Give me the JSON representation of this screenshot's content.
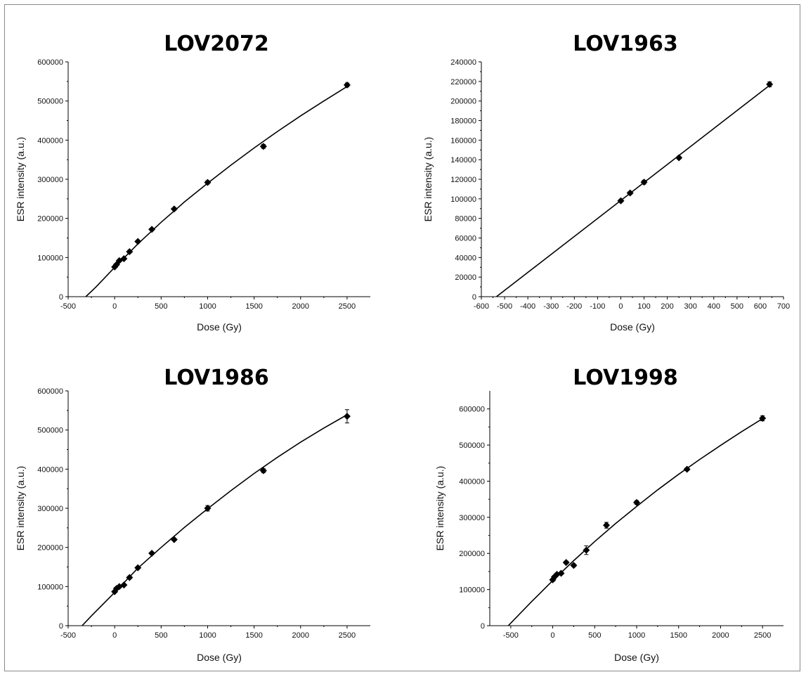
{
  "chart_data": [
    {
      "type": "scatter",
      "title": "LOV2072",
      "xlabel": "Dose (Gy)",
      "ylabel": "ESR intensity (a.u.)",
      "xlim": [
        -500,
        2750
      ],
      "ylim": [
        0,
        600000
      ],
      "xticks": [
        -500,
        0,
        500,
        1000,
        1500,
        2000,
        2500
      ],
      "yticks": [
        0,
        100000,
        200000,
        300000,
        400000,
        500000,
        600000
      ],
      "points": [
        {
          "x": 0,
          "y": 76000,
          "err": 3000
        },
        {
          "x": 20,
          "y": 82000,
          "err": 3000
        },
        {
          "x": 50,
          "y": 92000,
          "err": 3000
        },
        {
          "x": 100,
          "y": 97000,
          "err": 3000
        },
        {
          "x": 160,
          "y": 115000,
          "err": 3000
        },
        {
          "x": 250,
          "y": 141000,
          "err": 3000
        },
        {
          "x": 400,
          "y": 172000,
          "err": 3000
        },
        {
          "x": 640,
          "y": 224000,
          "err": 3000
        },
        {
          "x": 1000,
          "y": 292000,
          "err": 4000
        },
        {
          "x": 1600,
          "y": 384000,
          "err": 5000
        },
        {
          "x": 2500,
          "y": 541000,
          "err": 5000
        }
      ],
      "fit": {
        "x": [
          -310,
          -200,
          0,
          250,
          500,
          750,
          1000,
          1250,
          1500,
          1750,
          2000,
          2250,
          2500
        ],
        "y": [
          0,
          25000,
          75000,
          135000,
          190000,
          242000,
          290000,
          336000,
          380000,
          422000,
          462000,
          500000,
          537000
        ]
      }
    },
    {
      "type": "scatter",
      "title": "LOV1963",
      "xlabel": "Dose (Gy)",
      "ylabel": "ESR intensity (a.u.)",
      "xlim": [
        -600,
        700
      ],
      "ylim": [
        0,
        240000
      ],
      "xticks": [
        -600,
        -500,
        -400,
        -300,
        -200,
        -100,
        0,
        100,
        200,
        300,
        400,
        500,
        600,
        700
      ],
      "yticks": [
        0,
        20000,
        40000,
        60000,
        80000,
        100000,
        120000,
        140000,
        160000,
        180000,
        200000,
        220000,
        240000
      ],
      "points": [
        {
          "x": 0,
          "y": 98000,
          "err": 1500
        },
        {
          "x": 40,
          "y": 106000,
          "err": 1500
        },
        {
          "x": 100,
          "y": 117000,
          "err": 2000
        },
        {
          "x": 250,
          "y": 142000,
          "err": 1500
        },
        {
          "x": 640,
          "y": 217000,
          "err": 2500
        }
      ],
      "fit": {
        "x": [
          -535,
          640
        ],
        "y": [
          0,
          216000
        ]
      }
    },
    {
      "type": "scatter",
      "title": "LOV1986",
      "xlabel": "Dose (Gy)",
      "ylabel": "ESR intensity (a.u.)",
      "xlim": [
        -500,
        2750
      ],
      "ylim": [
        0,
        600000
      ],
      "xticks": [
        -500,
        0,
        500,
        1000,
        1500,
        2000,
        2500
      ],
      "yticks": [
        0,
        100000,
        200000,
        300000,
        400000,
        500000,
        600000
      ],
      "points": [
        {
          "x": 0,
          "y": 87000,
          "err": 3000
        },
        {
          "x": 20,
          "y": 95000,
          "err": 3000
        },
        {
          "x": 50,
          "y": 100000,
          "err": 3000
        },
        {
          "x": 100,
          "y": 104000,
          "err": 3000
        },
        {
          "x": 160,
          "y": 123000,
          "err": 3000
        },
        {
          "x": 250,
          "y": 148000,
          "err": 3000
        },
        {
          "x": 400,
          "y": 185000,
          "err": 3000
        },
        {
          "x": 640,
          "y": 220000,
          "err": 3000
        },
        {
          "x": 1000,
          "y": 300000,
          "err": 7000
        },
        {
          "x": 1600,
          "y": 396000,
          "err": 5000
        },
        {
          "x": 2500,
          "y": 535000,
          "err": 17000
        }
      ],
      "fit": {
        "x": [
          -350,
          -250,
          0,
          250,
          500,
          750,
          1000,
          1250,
          1500,
          1750,
          2000,
          2250,
          2500
        ],
        "y": [
          0,
          25000,
          85000,
          147000,
          200000,
          251000,
          299000,
          345000,
          389000,
          430000,
          469000,
          505000,
          539000
        ]
      }
    },
    {
      "type": "scatter",
      "title": "LOV1998",
      "xlabel": "Dose (Gy)",
      "ylabel": "ESR intensity (a.u.)",
      "xlim": [
        -750,
        2750
      ],
      "ylim": [
        0,
        650000
      ],
      "xticks": [
        -500,
        0,
        500,
        1000,
        1500,
        2000,
        2500
      ],
      "yticks": [
        0,
        100000,
        200000,
        300000,
        400000,
        500000,
        600000
      ],
      "points": [
        {
          "x": 0,
          "y": 127000,
          "err": 4000
        },
        {
          "x": 20,
          "y": 135000,
          "err": 4000
        },
        {
          "x": 50,
          "y": 142000,
          "err": 4000
        },
        {
          "x": 100,
          "y": 145000,
          "err": 4000
        },
        {
          "x": 160,
          "y": 175000,
          "err": 4000
        },
        {
          "x": 250,
          "y": 167000,
          "err": 4000
        },
        {
          "x": 400,
          "y": 209000,
          "err": 12000
        },
        {
          "x": 640,
          "y": 278000,
          "err": 8000
        },
        {
          "x": 1000,
          "y": 341000,
          "err": 5000
        },
        {
          "x": 1600,
          "y": 433000,
          "err": 4000
        },
        {
          "x": 2500,
          "y": 574000,
          "err": 7000
        }
      ],
      "fit": {
        "x": [
          -530,
          -250,
          0,
          250,
          500,
          750,
          1000,
          1250,
          1500,
          1750,
          2000,
          2250,
          2500
        ],
        "y": [
          0,
          67000,
          125000,
          180000,
          233000,
          283000,
          330000,
          376000,
          419000,
          460000,
          499000,
          537000,
          573000
        ]
      }
    }
  ]
}
